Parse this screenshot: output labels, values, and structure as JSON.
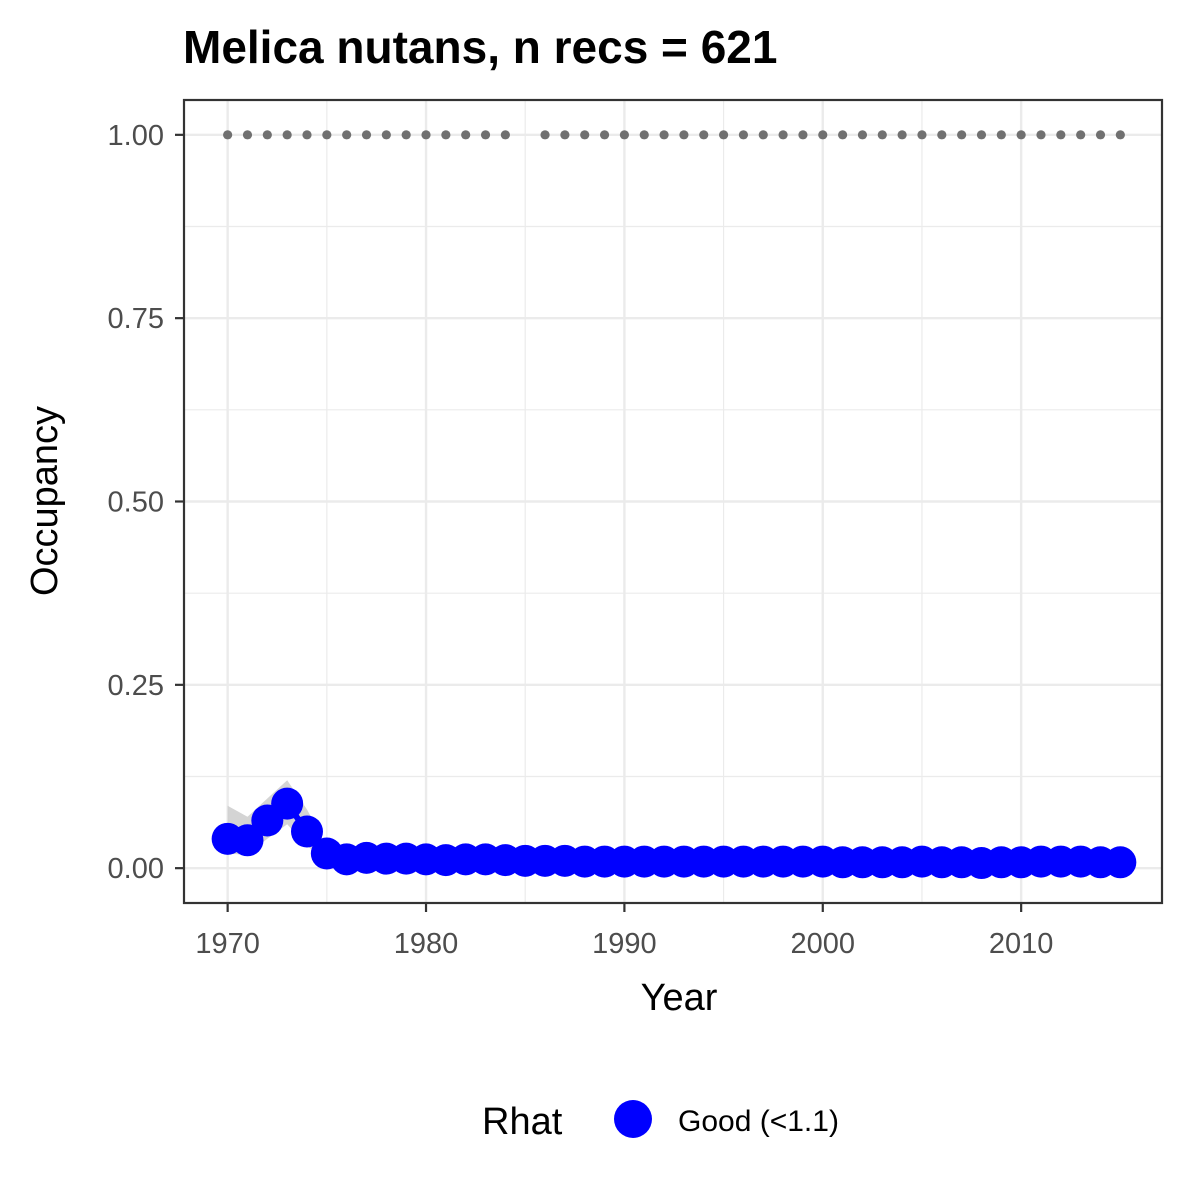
{
  "chart_data": {
    "type": "line",
    "title": "Melica nutans, n recs = 621",
    "xlabel": "Year",
    "ylabel": "Occupancy",
    "xlim": [
      1967.8,
      2017.1
    ],
    "ylim": [
      -0.0475,
      1.0475
    ],
    "x_ticks": [
      1970,
      1980,
      1990,
      2000,
      2010
    ],
    "x_tick_labels": [
      "1970",
      "1980",
      "1990",
      "2000",
      "2010"
    ],
    "y_ticks": [
      0,
      0.25,
      0.5,
      0.75,
      1.0
    ],
    "y_tick_labels": [
      "0.00",
      "0.25",
      "0.50",
      "0.75",
      "1.00"
    ],
    "grid": true,
    "legend": {
      "title": "Rhat",
      "position": "bottom",
      "entries": [
        {
          "label": "Good (<1.1)",
          "color": "#0000ff"
        }
      ]
    },
    "series": [
      {
        "name": "Good (<1.1)",
        "color": "#0000ff",
        "x": [
          1970,
          1971,
          1972,
          1973,
          1974,
          1975,
          1976,
          1977,
          1978,
          1979,
          1980,
          1981,
          1982,
          1983,
          1984,
          1985,
          1986,
          1987,
          1988,
          1989,
          1990,
          1991,
          1992,
          1993,
          1994,
          1995,
          1996,
          1997,
          1998,
          1999,
          2000,
          2001,
          2002,
          2003,
          2004,
          2005,
          2006,
          2007,
          2008,
          2009,
          2010,
          2011,
          2012,
          2013,
          2014,
          2015
        ],
        "y": [
          0.04,
          0.038,
          0.065,
          0.088,
          0.05,
          0.02,
          0.012,
          0.014,
          0.013,
          0.013,
          0.012,
          0.011,
          0.012,
          0.012,
          0.011,
          0.01,
          0.01,
          0.01,
          0.009,
          0.009,
          0.009,
          0.009,
          0.009,
          0.009,
          0.009,
          0.009,
          0.009,
          0.009,
          0.009,
          0.009,
          0.009,
          0.008,
          0.008,
          0.008,
          0.008,
          0.009,
          0.008,
          0.008,
          0.007,
          0.008,
          0.008,
          0.009,
          0.009,
          0.009,
          0.008,
          0.008
        ],
        "ci_upper": [
          0.085,
          0.07,
          0.095,
          0.12,
          0.08,
          0.03,
          0.018,
          0.02,
          0.019,
          0.019,
          0.018,
          0.016,
          0.017,
          0.017,
          0.016,
          0.015,
          0.015,
          0.014,
          0.013,
          0.013,
          0.013,
          0.013,
          0.013,
          0.013,
          0.013,
          0.013,
          0.013,
          0.013,
          0.013,
          0.013,
          0.013,
          0.012,
          0.012,
          0.012,
          0.012,
          0.013,
          0.012,
          0.012,
          0.011,
          0.012,
          0.012,
          0.013,
          0.013,
          0.013,
          0.012,
          0.012
        ],
        "ci_lower": [
          0.02,
          0.018,
          0.04,
          0.06,
          0.03,
          0.012,
          0.007,
          0.008,
          0.008,
          0.008,
          0.007,
          0.007,
          0.007,
          0.007,
          0.007,
          0.006,
          0.006,
          0.006,
          0.006,
          0.006,
          0.006,
          0.006,
          0.006,
          0.006,
          0.006,
          0.006,
          0.006,
          0.006,
          0.006,
          0.006,
          0.006,
          0.005,
          0.005,
          0.005,
          0.005,
          0.006,
          0.005,
          0.005,
          0.005,
          0.005,
          0.005,
          0.006,
          0.006,
          0.006,
          0.005,
          0.005
        ]
      }
    ],
    "data_years": {
      "color": "#707070",
      "y": 1.0,
      "x": [
        1970,
        1971,
        1972,
        1973,
        1974,
        1975,
        1976,
        1977,
        1978,
        1979,
        1980,
        1981,
        1982,
        1983,
        1984,
        1986,
        1987,
        1988,
        1989,
        1990,
        1991,
        1992,
        1993,
        1994,
        1995,
        1996,
        1997,
        1998,
        1999,
        2000,
        2001,
        2002,
        2003,
        2004,
        2005,
        2006,
        2007,
        2008,
        2009,
        2010,
        2011,
        2012,
        2013,
        2014,
        2015
      ]
    }
  }
}
